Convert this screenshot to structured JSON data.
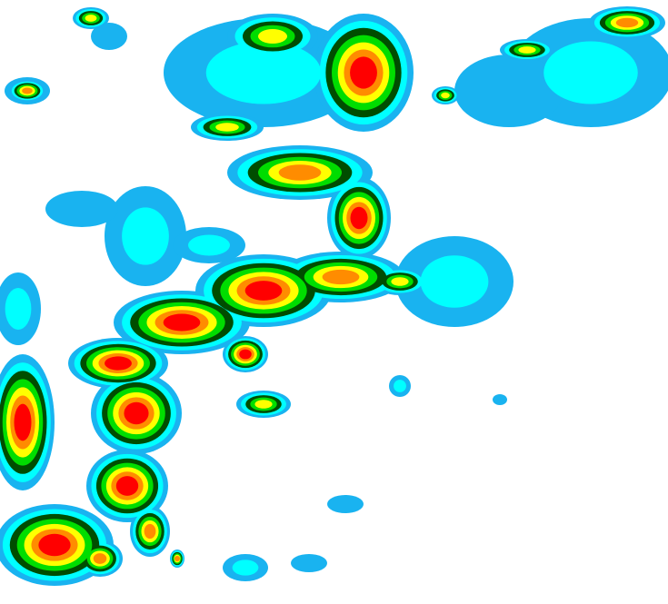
{
  "map": {
    "type": "weather-radar-reflectivity",
    "background": "#ffffff",
    "intensity_colors": [
      "#19b3f0",
      "#00ffff",
      "#004d00",
      "#00dd00",
      "#ffff00",
      "#ff8c00",
      "#ff0000"
    ]
  }
}
